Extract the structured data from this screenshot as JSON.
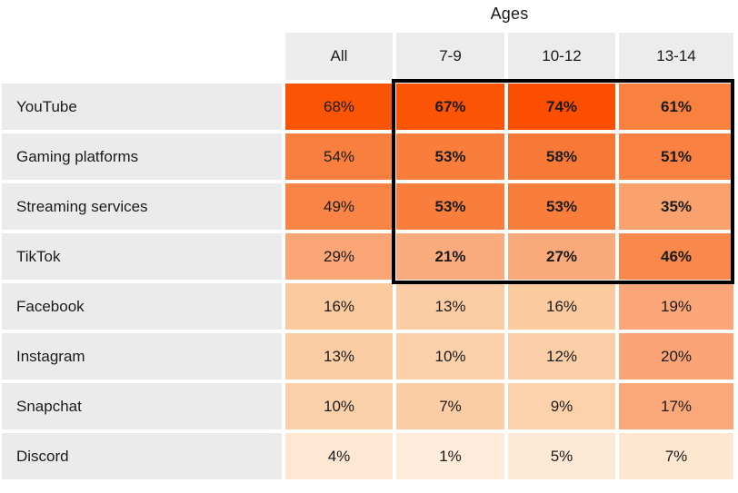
{
  "title": "Ages",
  "columns": [
    {
      "label": "All"
    },
    {
      "label": "7-9"
    },
    {
      "label": "10-12"
    },
    {
      "label": "13-14"
    }
  ],
  "rows": [
    {
      "label": "YouTube",
      "cells": [
        {
          "text": "68%",
          "bg": "#fb5405",
          "bold": false
        },
        {
          "text": "67%",
          "bg": "#fb5405",
          "bold": true
        },
        {
          "text": "74%",
          "bg": "#fb4e00",
          "bold": true
        },
        {
          "text": "61%",
          "bg": "#f9813f",
          "bold": true
        }
      ]
    },
    {
      "label": "Gaming platforms",
      "cells": [
        {
          "text": "54%",
          "bg": "#f97f3e",
          "bold": false
        },
        {
          "text": "53%",
          "bg": "#f97e3c",
          "bold": true
        },
        {
          "text": "58%",
          "bg": "#f87936",
          "bold": true
        },
        {
          "text": "51%",
          "bg": "#f98242",
          "bold": true
        }
      ]
    },
    {
      "label": "Streaming services",
      "cells": [
        {
          "text": "49%",
          "bg": "#f98445",
          "bold": false
        },
        {
          "text": "53%",
          "bg": "#f97e3c",
          "bold": true
        },
        {
          "text": "53%",
          "bg": "#f97e3c",
          "bold": true
        },
        {
          "text": "35%",
          "bg": "#faa26e",
          "bold": true
        }
      ]
    },
    {
      "label": "TikTok",
      "cells": [
        {
          "text": "29%",
          "bg": "#faa677",
          "bold": false
        },
        {
          "text": "21%",
          "bg": "#fbac7f",
          "bold": true
        },
        {
          "text": "27%",
          "bg": "#faa97b",
          "bold": true
        },
        {
          "text": "46%",
          "bg": "#f9884c",
          "bold": true
        }
      ]
    },
    {
      "label": "Facebook",
      "cells": [
        {
          "text": "16%",
          "bg": "#fcca9f",
          "bold": false
        },
        {
          "text": "13%",
          "bg": "#fccda5",
          "bold": false
        },
        {
          "text": "16%",
          "bg": "#fcca9f",
          "bold": false
        },
        {
          "text": "19%",
          "bg": "#faa678",
          "bold": false
        }
      ]
    },
    {
      "label": "Instagram",
      "cells": [
        {
          "text": "13%",
          "bg": "#fccda5",
          "bold": false
        },
        {
          "text": "10%",
          "bg": "#fcd0aa",
          "bold": false
        },
        {
          "text": "12%",
          "bg": "#fccea7",
          "bold": false
        },
        {
          "text": "20%",
          "bg": "#faa475",
          "bold": false
        }
      ]
    },
    {
      "label": "Snapchat",
      "cells": [
        {
          "text": "10%",
          "bg": "#fcd0aa",
          "bold": false
        },
        {
          "text": "7%",
          "bg": "#fccda4",
          "bold": false
        },
        {
          "text": "9%",
          "bg": "#fcd1ac",
          "bold": false
        },
        {
          "text": "17%",
          "bg": "#faa87a",
          "bold": false
        }
      ]
    },
    {
      "label": "Discord",
      "cells": [
        {
          "text": "4%",
          "bg": "#fee8d3",
          "bold": false
        },
        {
          "text": "1%",
          "bg": "#feebd9",
          "bold": false
        },
        {
          "text": "5%",
          "bg": "#fee9d6",
          "bold": false
        },
        {
          "text": "7%",
          "bg": "#fee7d1",
          "bold": false
        }
      ]
    }
  ],
  "colors": {
    "header_bg": "#ececec",
    "label_bg": "#ebebeb",
    "text": "#1b1b1b",
    "highlight_border": "#000000",
    "max_heat": "#fb4e00",
    "min_heat": "#feebd9"
  },
  "chart_data": {
    "type": "heatmap",
    "title": "Ages",
    "columns": [
      "All",
      "7-9",
      "10-12",
      "13-14"
    ],
    "row_labels": [
      "YouTube",
      "Gaming platforms",
      "Streaming services",
      "TikTok",
      "Facebook",
      "Instagram",
      "Snapchat",
      "Discord"
    ],
    "unit": "%",
    "values": [
      [
        68,
        67,
        74,
        61
      ],
      [
        54,
        53,
        58,
        51
      ],
      [
        49,
        53,
        53,
        35
      ],
      [
        29,
        21,
        27,
        46
      ],
      [
        16,
        13,
        16,
        19
      ],
      [
        13,
        10,
        12,
        20
      ],
      [
        10,
        7,
        9,
        17
      ],
      [
        4,
        1,
        5,
        7
      ]
    ],
    "highlighted_region": {
      "rows": [
        "YouTube",
        "Gaming platforms",
        "Streaming services",
        "TikTok"
      ],
      "columns": [
        "7-9",
        "10-12",
        "13-14"
      ],
      "style": "thick black border, bold values"
    },
    "legend": "none",
    "grid": "white gaps between cells"
  }
}
